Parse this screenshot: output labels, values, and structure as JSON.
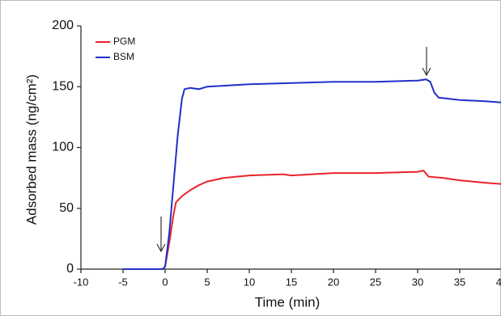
{
  "chart_data": {
    "type": "line",
    "x_label": "Time (min)",
    "y_label": "Adsorbed mass (ng/cm²)",
    "xlim": [
      -10,
      40
    ],
    "xticks": [
      -10,
      -5,
      0,
      5,
      10,
      15,
      20,
      25,
      30,
      35,
      40
    ],
    "ylim": [
      0,
      200
    ],
    "yticks": [
      0,
      50,
      100,
      150,
      200
    ],
    "legend": "upper left",
    "series": [
      {
        "name": "PGM",
        "color": "#e8242b",
        "x": [
          -5,
          -2,
          -0.3,
          0,
          0.5,
          1,
          1.3,
          2,
          3,
          4,
          5,
          7,
          10,
          14,
          15,
          20,
          25,
          30,
          30.7,
          31.3,
          33,
          35,
          38,
          40
        ],
        "values": [
          0,
          0,
          0,
          2,
          22,
          45,
          55,
          60,
          65,
          69,
          72,
          75,
          77,
          78,
          77,
          79,
          79,
          80,
          81,
          76,
          75,
          73,
          71,
          70
        ]
      },
      {
        "name": "BSM",
        "color": "#2130c8",
        "x": [
          -5,
          -2,
          -0.3,
          0,
          0.5,
          1,
          1.5,
          2,
          2.3,
          3,
          4,
          5,
          10,
          15,
          20,
          25,
          30,
          31,
          31.5,
          32,
          32.5,
          35,
          38,
          40
        ],
        "values": [
          0,
          0,
          0,
          2,
          30,
          70,
          110,
          140,
          148,
          149,
          148,
          150,
          152,
          153,
          154,
          154,
          155,
          156,
          154,
          145,
          141,
          139,
          138,
          137
        ]
      }
    ]
  }
}
